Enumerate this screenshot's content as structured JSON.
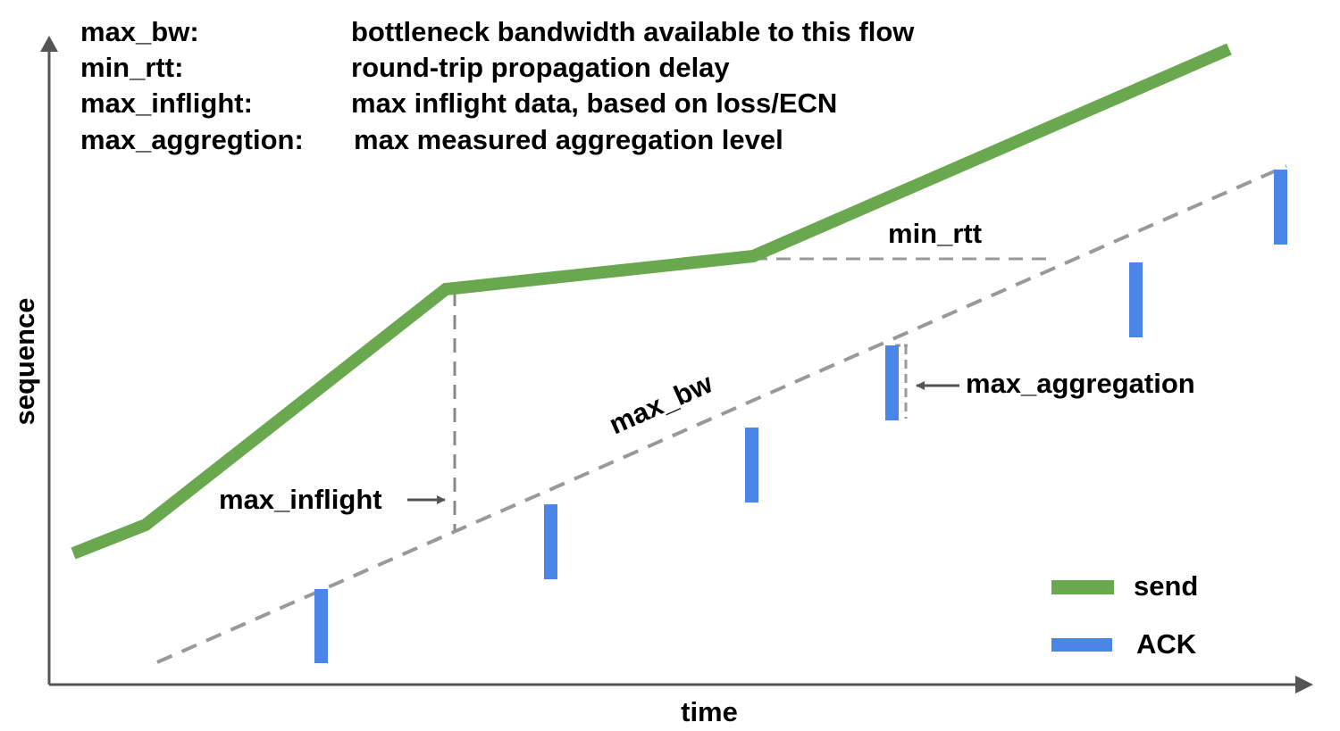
{
  "definitions": [
    {
      "term": "max_bw:",
      "description": "bottleneck bandwidth available to this flow"
    },
    {
      "term": "min_rtt:",
      "description": "round-trip propagation delay"
    },
    {
      "term": "max_inflight:",
      "description": "max inflight data, based on loss/ECN"
    },
    {
      "term": "max_aggregtion:",
      "description": "max measured aggregation level"
    }
  ],
  "axes": {
    "x_label": "time",
    "y_label": "sequence"
  },
  "annotations": {
    "min_rtt": "min_rtt",
    "max_bw": "max_bw",
    "max_inflight": "max_inflight",
    "max_aggregation": "max_aggregation"
  },
  "legend": [
    {
      "label": "send",
      "color": "#6aa84f"
    },
    {
      "label": "ACK",
      "color": "#4a86e8"
    }
  ],
  "colors": {
    "send": "#6aa84f",
    "ack": "#4a86e8",
    "dashed": "#999999",
    "axis": "#555555"
  }
}
